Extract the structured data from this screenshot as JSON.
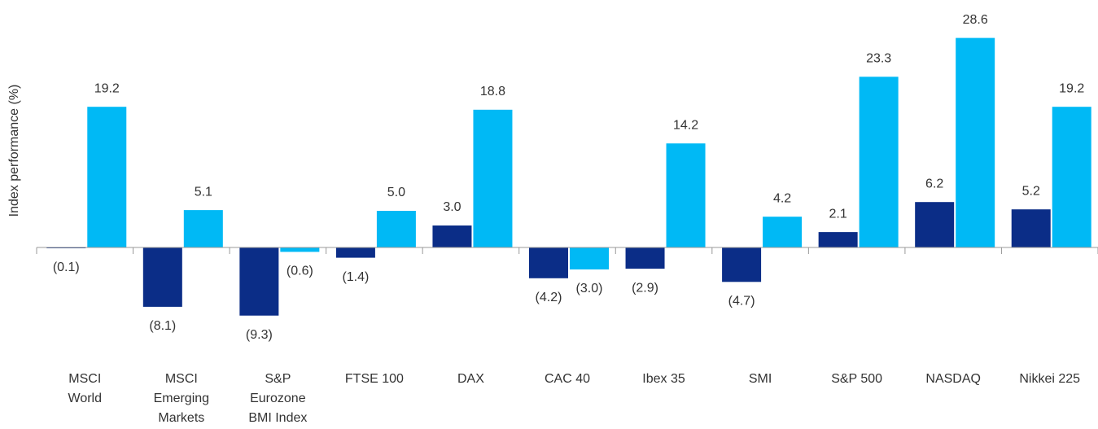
{
  "chart_data": {
    "type": "bar",
    "y_label": "Index performance  (%)",
    "categories": [
      "MSCI\nWorld",
      "MSCI\nEmerging\nMarkets",
      "S&P\nEurozone\nBMI Index",
      "FTSE 100",
      "DAX",
      "CAC 40",
      "Ibex 35",
      "SMI",
      "S&P 500",
      "NASDAQ",
      "Nikkei 225"
    ],
    "series": [
      {
        "color": "#0b2d87",
        "values": [
          -0.1,
          -8.1,
          -9.3,
          -1.4,
          3.0,
          -4.2,
          -2.9,
          -4.7,
          2.1,
          6.2,
          5.2
        ],
        "value_labels": [
          "(0.1)",
          "(8.1)",
          "(9.3)",
          "(1.4)",
          "3.0",
          "(4.2)",
          "(2.9)",
          "(4.7)",
          "2.1",
          "6.2",
          "5.2"
        ]
      },
      {
        "color": "#00b9f5",
        "values": [
          19.2,
          5.1,
          -0.6,
          5.0,
          18.8,
          -3.0,
          14.2,
          4.2,
          23.3,
          28.6,
          19.2
        ],
        "value_labels": [
          "19.2",
          "5.1",
          "(0.6)",
          "5.0",
          "18.8",
          "(3.0)",
          "14.2",
          "4.2",
          "23.3",
          "28.6",
          "19.2"
        ]
      }
    ],
    "ylim": [
      -10,
      33
    ]
  }
}
